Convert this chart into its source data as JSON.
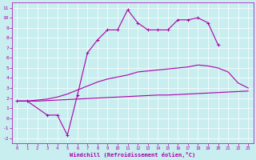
{
  "xlabel": "Windchill (Refroidissement éolien,°C)",
  "bg_color": "#c8eef0",
  "grid_color": "#ffffff",
  "line_color": "#aa00aa",
  "xlim": [
    -0.5,
    23.5
  ],
  "ylim": [
    -2.5,
    11.5
  ],
  "xticks": [
    0,
    1,
    2,
    3,
    4,
    5,
    6,
    7,
    8,
    9,
    10,
    11,
    12,
    13,
    14,
    15,
    16,
    17,
    18,
    19,
    20,
    21,
    22,
    23
  ],
  "yticks": [
    -2,
    -1,
    0,
    1,
    2,
    3,
    4,
    5,
    6,
    7,
    8,
    9,
    10,
    11
  ],
  "top_x": [
    0,
    1,
    3,
    4,
    5,
    6,
    7,
    8,
    9,
    10,
    11,
    12,
    13,
    14,
    15,
    16,
    17,
    18,
    19,
    20
  ],
  "top_y": [
    1.7,
    1.7,
    0.3,
    0.3,
    -1.7,
    2.3,
    6.5,
    7.8,
    8.8,
    8.8,
    10.8,
    9.5,
    8.8,
    8.8,
    8.8,
    9.8,
    9.8,
    10.0,
    9.5,
    7.3
  ],
  "mid_x": [
    0,
    1,
    2,
    3,
    4,
    5,
    6,
    7,
    8,
    9,
    10,
    11,
    12,
    13,
    14,
    15,
    16,
    17,
    18,
    19,
    20,
    21,
    22,
    23
  ],
  "mid_y": [
    1.7,
    1.7,
    1.8,
    1.9,
    2.1,
    2.4,
    2.8,
    3.2,
    3.6,
    3.9,
    4.1,
    4.3,
    4.6,
    4.7,
    4.8,
    4.9,
    5.0,
    5.1,
    5.3,
    5.2,
    5.0,
    4.6,
    3.5,
    3.0
  ],
  "bot_x": [
    0,
    1,
    2,
    3,
    4,
    5,
    6,
    7,
    8,
    9,
    10,
    11,
    12,
    13,
    14,
    15,
    16,
    17,
    18,
    19,
    20,
    21,
    22,
    23
  ],
  "bot_y": [
    1.7,
    1.7,
    1.7,
    1.75,
    1.8,
    1.85,
    1.9,
    1.95,
    2.0,
    2.05,
    2.1,
    2.15,
    2.2,
    2.25,
    2.3,
    2.3,
    2.35,
    2.4,
    2.45,
    2.5,
    2.55,
    2.6,
    2.65,
    2.7
  ],
  "figsize": [
    3.2,
    2.0
  ],
  "dpi": 100
}
